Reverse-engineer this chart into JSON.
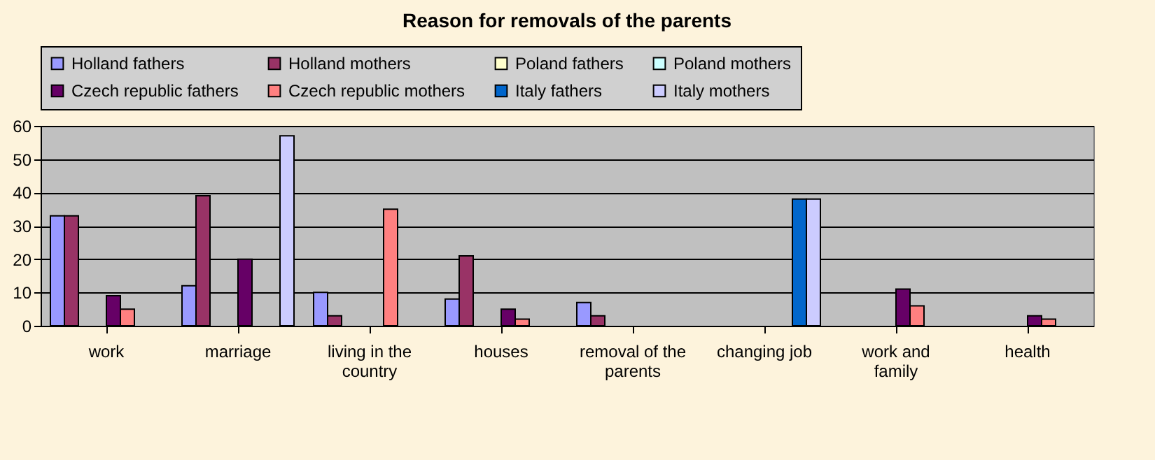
{
  "chart_data": {
    "type": "bar",
    "title": "Reason for removals of the parents",
    "categories": [
      "work",
      "marriage",
      "living in the country",
      "houses",
      "removal of the parents",
      "changing job",
      "work and family",
      "health"
    ],
    "series": [
      {
        "name": "Holland fathers",
        "color": "#9999ff",
        "values": [
          33,
          12,
          10,
          8,
          7,
          null,
          null,
          null
        ]
      },
      {
        "name": "Holland mothers",
        "color": "#993366",
        "values": [
          33,
          39,
          3,
          21,
          3,
          null,
          null,
          null
        ]
      },
      {
        "name": "Poland fathers",
        "color": "#ffffcc",
        "values": [
          null,
          null,
          null,
          null,
          null,
          null,
          null,
          null
        ]
      },
      {
        "name": "Poland mothers",
        "color": "#ccffff",
        "values": [
          null,
          null,
          null,
          null,
          null,
          null,
          null,
          null
        ]
      },
      {
        "name": "Czech republic fathers",
        "color": "#660066",
        "values": [
          9,
          20,
          null,
          5,
          null,
          null,
          11,
          3
        ]
      },
      {
        "name": "Czech republic mothers",
        "color": "#ff8080",
        "values": [
          5,
          null,
          35,
          2,
          null,
          null,
          6,
          2
        ]
      },
      {
        "name": "Italy fathers",
        "color": "#0066cc",
        "values": [
          null,
          null,
          null,
          null,
          null,
          38,
          null,
          null
        ]
      },
      {
        "name": "Italy mothers",
        "color": "#ccccff",
        "values": [
          null,
          57,
          null,
          null,
          null,
          38,
          null,
          null
        ]
      }
    ],
    "ylim": [
      0,
      60
    ],
    "yticks": [
      0,
      10,
      20,
      30,
      40,
      50,
      60
    ],
    "grid": "y",
    "legend": "top"
  }
}
